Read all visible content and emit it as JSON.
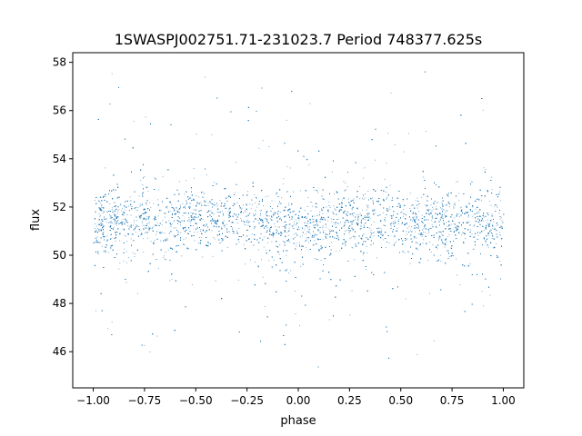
{
  "chart_data": {
    "type": "scatter",
    "title": "1SWASPJ002751.71-231023.7 Period 748377.625s",
    "xlabel": "phase",
    "ylabel": "flux",
    "xlim": [
      -1.1,
      1.1
    ],
    "ylim": [
      44.5,
      58.4
    ],
    "xticks": [
      -1.0,
      -0.75,
      -0.5,
      -0.25,
      0.0,
      0.25,
      0.5,
      0.75,
      1.0
    ],
    "xtick_labels": [
      "−1.00",
      "−0.75",
      "−0.50",
      "−0.25",
      "0.00",
      "0.25",
      "0.50",
      "0.75",
      "1.00"
    ],
    "yticks": [
      46,
      48,
      50,
      52,
      54,
      56,
      58
    ],
    "ytick_labels": [
      "46",
      "48",
      "50",
      "52",
      "54",
      "56",
      "58"
    ],
    "grid": false,
    "legend": "none",
    "marker_color": "#1f77b4",
    "series": [
      {
        "x_range": [
          -1.0,
          1.0
        ],
        "band_center": 51.4,
        "band_core_halfwidth": 1.3,
        "outlier_range": [
          45.2,
          57.8
        ],
        "profile_x": [
          -1.0,
          -0.9,
          -0.75,
          -0.65,
          -0.55,
          -0.45,
          -0.3,
          -0.2,
          -0.1,
          0.0,
          0.1,
          0.2,
          0.3,
          0.45,
          0.55,
          0.65,
          0.75,
          0.85,
          1.0
        ],
        "profile_y": [
          51.3,
          51.4,
          51.5,
          51.3,
          51.5,
          51.6,
          51.5,
          51.3,
          51.2,
          51.1,
          51.3,
          51.5,
          51.4,
          51.6,
          51.4,
          51.5,
          51.4,
          51.3,
          51.3
        ]
      }
    ]
  }
}
